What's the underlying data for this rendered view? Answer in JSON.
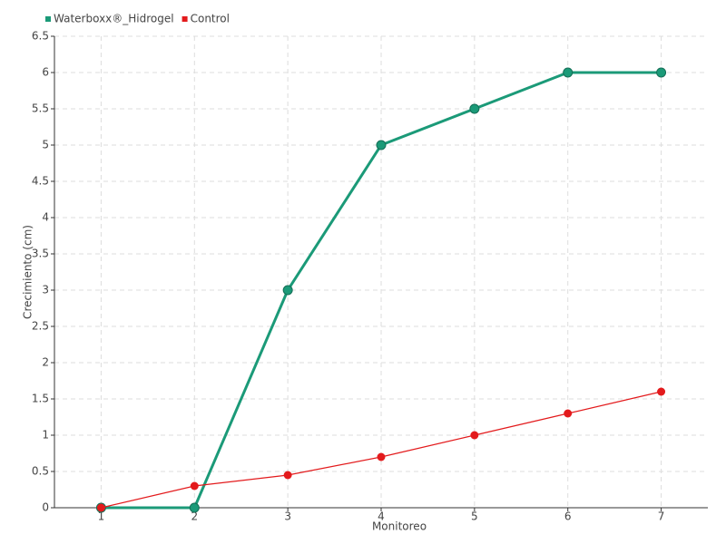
{
  "chart_data": {
    "type": "line",
    "x_label": "Monitoreo",
    "y_label": "Crecimiento (cm)",
    "categories": [
      "1",
      "2",
      "3",
      "4",
      "5",
      "6",
      "7"
    ],
    "series": [
      {
        "name": "Waterboxx®_Hidrogel",
        "color": "#1b9a78",
        "values": [
          0,
          0,
          3,
          5,
          5.5,
          6,
          6
        ]
      },
      {
        "name": "Control",
        "color": "#e31a1c",
        "values": [
          0,
          0.3,
          0.45,
          0.7,
          1,
          1.3,
          1.6
        ]
      }
    ],
    "ylim": [
      0,
      6.5
    ],
    "yticks": [
      0,
      0.5,
      1,
      1.5,
      2,
      2.5,
      3,
      3.5,
      4,
      4.5,
      5,
      5.5,
      6,
      6.5
    ],
    "grid": true,
    "legend": "top-left"
  }
}
